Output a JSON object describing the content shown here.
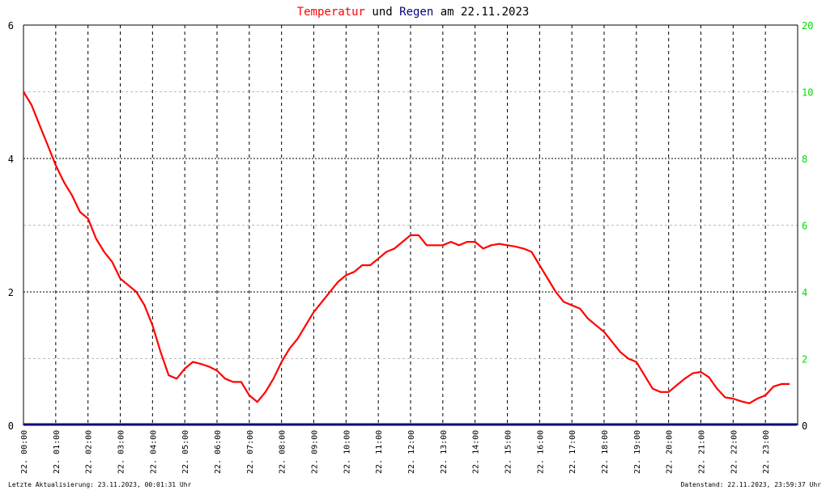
{
  "chart_data": {
    "type": "line",
    "title": {
      "part_temp": "Temperatur",
      "part_und": "und",
      "part_regen": "Regen",
      "part_am": "am",
      "date": "22.11.2023"
    },
    "colors": {
      "temperature": "#ff0000",
      "rain": "#000080",
      "right_axis_ticks": "#00dd00",
      "grid_dark": "#000000",
      "grid_light": "#bbbbbb"
    },
    "y_left": {
      "ticks": [
        "0",
        "2",
        "4",
        "6"
      ],
      "ylim": [
        0,
        6
      ]
    },
    "y_right": {
      "ticks": [
        "0",
        "2",
        "4",
        "6",
        "8",
        "10",
        "20"
      ]
    },
    "x_ticks": [
      "22. 00:00",
      "22. 01:00",
      "22. 02:00",
      "22. 03:00",
      "22. 04:00",
      "22. 05:00",
      "22. 06:00",
      "22. 07:00",
      "22. 08:00",
      "22. 09:00",
      "22. 10:00",
      "22. 11:00",
      "22. 12:00",
      "22. 13:00",
      "22. 14:00",
      "22. 15:00",
      "22. 16:00",
      "22. 17:00",
      "22. 18:00",
      "22. 19:00",
      "22. 20:00",
      "22. 21:00",
      "22. 22:00",
      "22. 23:00"
    ],
    "series": [
      {
        "name": "Temperatur",
        "x": [
          "00:00",
          "00:15",
          "00:30",
          "00:45",
          "01:00",
          "01:15",
          "01:30",
          "01:45",
          "02:00",
          "02:15",
          "02:30",
          "02:45",
          "03:00",
          "03:15",
          "03:30",
          "03:45",
          "04:00",
          "04:15",
          "04:30",
          "04:45",
          "05:00",
          "05:15",
          "05:30",
          "05:45",
          "06:00",
          "06:15",
          "06:30",
          "06:45",
          "07:00",
          "07:15",
          "07:30",
          "07:45",
          "08:00",
          "08:15",
          "08:30",
          "08:45",
          "09:00",
          "09:15",
          "09:30",
          "09:45",
          "10:00",
          "10:15",
          "10:30",
          "10:45",
          "11:00",
          "11:15",
          "11:30",
          "11:45",
          "12:00",
          "12:15",
          "12:30",
          "12:45",
          "13:00",
          "13:15",
          "13:30",
          "13:45",
          "14:00",
          "14:15",
          "14:30",
          "14:45",
          "15:00",
          "15:15",
          "15:30",
          "15:45",
          "16:00",
          "16:15",
          "16:30",
          "16:45",
          "17:00",
          "17:15",
          "17:30",
          "17:45",
          "18:00",
          "18:15",
          "18:30",
          "18:45",
          "19:00",
          "19:15",
          "19:30",
          "19:45",
          "20:00",
          "20:15",
          "20:30",
          "20:45",
          "21:00",
          "21:15",
          "21:30",
          "21:45",
          "22:00",
          "22:15",
          "22:30",
          "22:45",
          "23:00",
          "23:15",
          "23:30",
          "23:45"
        ],
        "values": [
          5.0,
          4.8,
          4.5,
          4.2,
          3.9,
          3.65,
          3.45,
          3.2,
          3.1,
          2.8,
          2.6,
          2.45,
          2.2,
          2.1,
          2.0,
          1.8,
          1.5,
          1.1,
          0.75,
          0.7,
          0.85,
          0.95,
          0.92,
          0.88,
          0.82,
          0.7,
          0.65,
          0.65,
          0.45,
          0.35,
          0.5,
          0.7,
          0.95,
          1.15,
          1.3,
          1.5,
          1.7,
          1.85,
          2.0,
          2.15,
          2.25,
          2.3,
          2.4,
          2.4,
          2.5,
          2.6,
          2.65,
          2.75,
          2.85,
          2.85,
          2.7,
          2.7,
          2.7,
          2.75,
          2.7,
          2.75,
          2.75,
          2.65,
          2.7,
          2.72,
          2.7,
          2.68,
          2.65,
          2.6,
          2.4,
          2.2,
          2.0,
          1.85,
          1.8,
          1.75,
          1.6,
          1.5,
          1.4,
          1.25,
          1.1,
          1.0,
          0.95,
          0.75,
          0.55,
          0.5,
          0.5,
          0.6,
          0.7,
          0.78,
          0.8,
          0.72,
          0.55,
          0.42,
          0.4,
          0.36,
          0.33,
          0.4,
          0.45,
          0.58,
          0.62,
          0.62
        ]
      },
      {
        "name": "Regen",
        "x": [
          "00:00",
          "23:59"
        ],
        "values": [
          0,
          0
        ]
      }
    ],
    "grid": true
  },
  "footer": {
    "left": "Letzte Aktualisierung: 23.11.2023, 00:01:31 Uhr",
    "right": "Datenstand: 22.11.2023, 23:59:37 Uhr"
  }
}
